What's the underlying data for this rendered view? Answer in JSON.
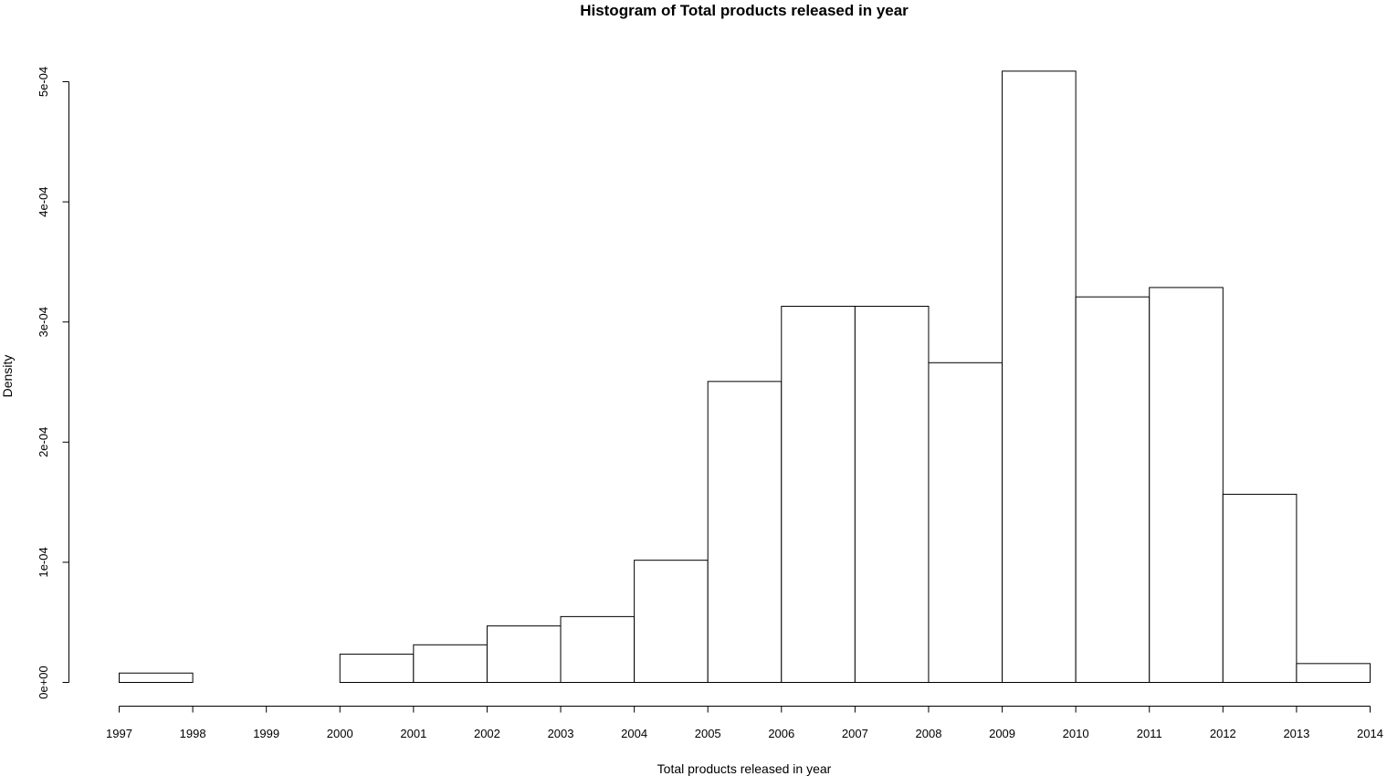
{
  "chart_data": {
    "type": "bar",
    "title": "Histogram of Total products released in year",
    "xlabel": "Total products released in year",
    "ylabel": "Density",
    "bins": [
      {
        "start": 1997,
        "end": 1998,
        "density": 7.8e-06
      },
      {
        "start": 1998,
        "end": 1999,
        "density": 0.0
      },
      {
        "start": 1999,
        "end": 2000,
        "density": 0.0
      },
      {
        "start": 2000,
        "end": 2001,
        "density": 2.35e-05
      },
      {
        "start": 2001,
        "end": 2002,
        "density": 3.13e-05
      },
      {
        "start": 2002,
        "end": 2003,
        "density": 4.7e-05
      },
      {
        "start": 2003,
        "end": 2004,
        "density": 5.48e-05
      },
      {
        "start": 2004,
        "end": 2005,
        "density": 0.0001017
      },
      {
        "start": 2005,
        "end": 2006,
        "density": 0.0002505
      },
      {
        "start": 2006,
        "end": 2007,
        "density": 0.0003131
      },
      {
        "start": 2007,
        "end": 2008,
        "density": 0.0003131
      },
      {
        "start": 2008,
        "end": 2009,
        "density": 0.0002661
      },
      {
        "start": 2009,
        "end": 2010,
        "density": 0.0005088
      },
      {
        "start": 2010,
        "end": 2011,
        "density": 0.0003209
      },
      {
        "start": 2011,
        "end": 2012,
        "density": 0.0003287
      },
      {
        "start": 2012,
        "end": 2013,
        "density": 0.0001566
      },
      {
        "start": 2013,
        "end": 2014,
        "density": 1.57e-05
      }
    ],
    "x_ticks": [
      1997,
      1998,
      1999,
      2000,
      2001,
      2002,
      2003,
      2004,
      2005,
      2006,
      2007,
      2008,
      2009,
      2010,
      2011,
      2012,
      2013,
      2014
    ],
    "x_tick_labels": [
      "1997",
      "1998",
      "1999",
      "2000",
      "2001",
      "2002",
      "2003",
      "2004",
      "2005",
      "2006",
      "2007",
      "2008",
      "2009",
      "2010",
      "2011",
      "2012",
      "2013",
      "2014"
    ],
    "y_ticks": [
      0,
      0.0001,
      0.0002,
      0.0003,
      0.0004,
      0.0005
    ],
    "y_tick_labels": [
      "0e+00",
      "1e-04",
      "2e-04",
      "3e-04",
      "4e-04",
      "5e-04"
    ],
    "xlim": [
      1997,
      2014
    ],
    "ylim": [
      0,
      0.0005
    ],
    "grid": false,
    "colors": {
      "bar_fill": "#ffffff",
      "bar_stroke": "#000000",
      "axis": "#000000",
      "background": "#ffffff"
    }
  }
}
